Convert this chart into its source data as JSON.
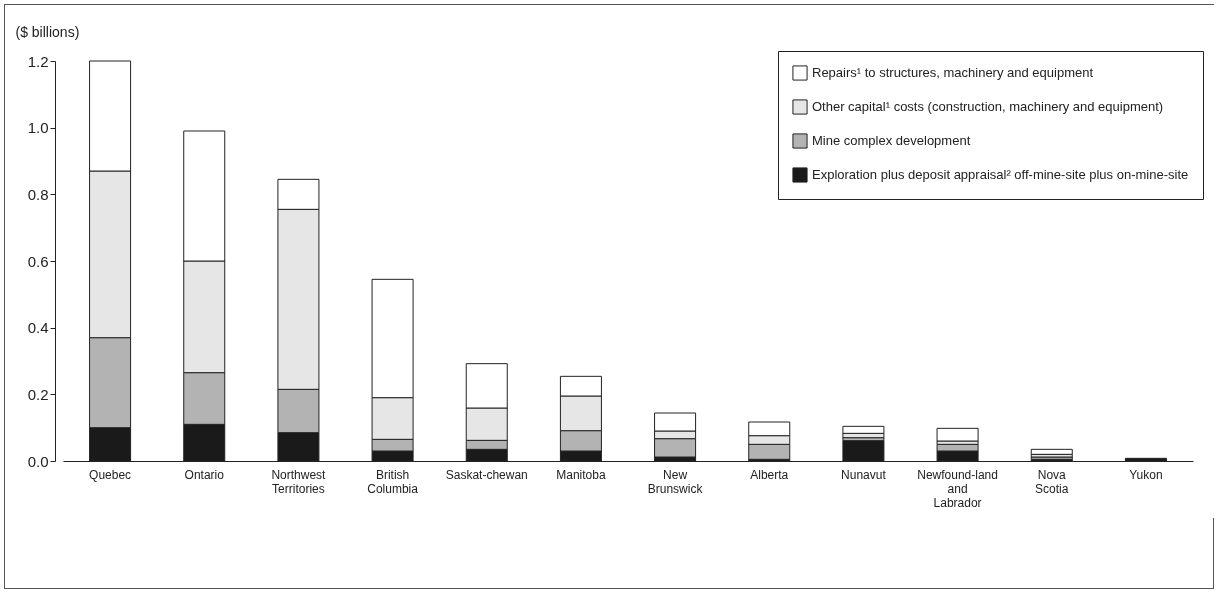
{
  "chart_data": {
    "type": "bar",
    "stacked": true,
    "ylabel": "($ billions)",
    "categories": [
      "Quebec",
      "Ontario",
      "Northwest Territories",
      "British Columbia",
      "Saskat-chewan",
      "Manitoba",
      "New Brunswick",
      "Alberta",
      "Nunavut",
      "Newfound-land and Labrador",
      "Nova Scotia",
      "Yukon"
    ],
    "series": [
      {
        "name": "Exploration plus deposit appraisal² off-mine-site plus on-mine-site",
        "color": "#1a1a1a",
        "values": [
          0.1,
          0.11,
          0.085,
          0.03,
          0.035,
          0.03,
          0.012,
          0.005,
          0.061,
          0.03,
          0.005,
          0.008
        ]
      },
      {
        "name": "Mine complex development",
        "color": "#b3b3b3",
        "values": [
          0.27,
          0.155,
          0.13,
          0.035,
          0.027,
          0.061,
          0.055,
          0.045,
          0.009,
          0.02,
          0.007,
          null
        ]
      },
      {
        "name": "Other capital¹ costs (construction, machinery and equipment)",
        "color": "#e6e6e6",
        "values": [
          0.5,
          0.335,
          0.54,
          0.125,
          0.097,
          0.104,
          0.023,
          0.026,
          0.013,
          0.01,
          0.008,
          null
        ]
      },
      {
        "name": "Repairs¹ to structures, machinery and equipment",
        "color": "#ffffff",
        "values": [
          0.33,
          0.39,
          0.09,
          0.355,
          0.133,
          0.059,
          0.054,
          0.041,
          0.021,
          0.038,
          0.015,
          null
        ]
      }
    ],
    "ylim": [
      0,
      1.2
    ],
    "yticks": [
      {
        "value": 0,
        "label": "0.0"
      },
      0.2,
      0.4,
      0.6,
      0.8,
      {
        "value": 1,
        "label": "1.0"
      },
      1.2
    ],
    "grid": false,
    "legend": "top right"
  }
}
